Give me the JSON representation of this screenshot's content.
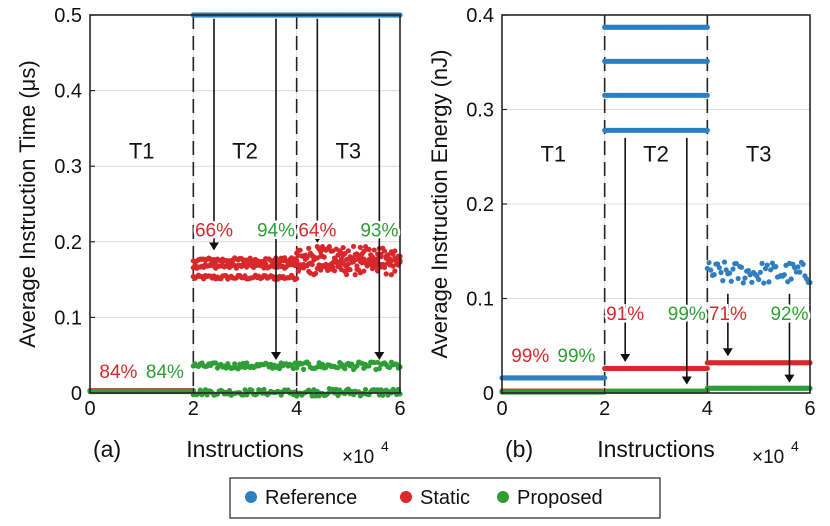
{
  "figure": {
    "colors": {
      "reference": "#2e7fc1",
      "static": "#d8282b",
      "proposed": "#2e9e35",
      "axis": "#262626",
      "grid": "#dcdcdc"
    },
    "x_multiplier": "×10",
    "x_multiplier_exp": "4",
    "legend": [
      {
        "name": "Reference",
        "color": "#2e7fc1"
      },
      {
        "name": "Static",
        "color": "#d8282b"
      },
      {
        "name": "Proposed",
        "color": "#2e9e35"
      }
    ]
  },
  "chart_data": [
    {
      "type": "scatter",
      "panel_label": "(a)",
      "xlabel": "Instructions",
      "ylabel": "Average Instruction Time (μs)",
      "xlim": [
        0,
        6
      ],
      "ylim": [
        0,
        0.5
      ],
      "xticks": [
        "0",
        "2",
        "4",
        "6"
      ],
      "yticks": [
        "0",
        "0.1",
        "0.2",
        "0.3",
        "0.4",
        "0.5"
      ],
      "grid": true,
      "phase_boundaries": [
        2,
        4
      ],
      "phases": [
        {
          "label": "T1",
          "x": 1,
          "y": 0.31
        },
        {
          "label": "T2",
          "x": 3,
          "y": 0.31
        },
        {
          "label": "T3",
          "x": 5,
          "y": 0.31
        }
      ],
      "series": [
        {
          "name": "Reference",
          "segments": [
            {
              "x": [
                0,
                2
              ],
              "levels": [
                0.003
              ]
            },
            {
              "x": [
                2,
                4
              ],
              "levels": [
                0.5
              ]
            },
            {
              "x": [
                4,
                6
              ],
              "levels": [
                0.5
              ]
            }
          ]
        },
        {
          "name": "Static",
          "segments": [
            {
              "x": [
                0,
                2
              ],
              "levels": [
                0.003
              ]
            },
            {
              "x": [
                2,
                4
              ],
              "levels": [
                0.153,
                0.168,
                0.176
              ],
              "jitter": 0.003
            },
            {
              "x": [
                4,
                6
              ],
              "levels": [
                0.165,
                0.175,
                0.185
              ],
              "jitter": 0.009
            }
          ]
        },
        {
          "name": "Proposed",
          "segments": [
            {
              "x": [
                0,
                2
              ],
              "levels": [
                0.002
              ]
            },
            {
              "x": [
                2,
                4
              ],
              "levels": [
                0.001,
                0.036
              ],
              "jitter": 0.004
            },
            {
              "x": [
                4,
                6
              ],
              "levels": [
                0.001,
                0.036
              ],
              "jitter": 0.005
            }
          ]
        }
      ],
      "annotations": [
        {
          "text": "84%",
          "series": "Static",
          "x": 0.55,
          "y": 0.02
        },
        {
          "text": "84%",
          "series": "Proposed",
          "x": 1.45,
          "y": 0.02
        },
        {
          "text": "66%",
          "series": "Static",
          "x": 2.4,
          "y": 0.207,
          "arrow": [
            2.4,
            0.495,
            2.4,
            0.19
          ]
        },
        {
          "text": "94%",
          "series": "Proposed",
          "x": 3.6,
          "y": 0.207,
          "arrow": [
            3.6,
            0.495,
            3.6,
            0.045
          ]
        },
        {
          "text": "64%",
          "series": "Static",
          "x": 4.4,
          "y": 0.207,
          "arrow": [
            4.4,
            0.495,
            4.4,
            0.2
          ]
        },
        {
          "text": "93%",
          "series": "Proposed",
          "x": 5.6,
          "y": 0.207,
          "arrow": [
            5.6,
            0.495,
            5.6,
            0.045
          ]
        }
      ]
    },
    {
      "type": "scatter",
      "panel_label": "(b)",
      "xlabel": "Instructions",
      "ylabel": "Average Instruction Energy (nJ)",
      "xlim": [
        0,
        6
      ],
      "ylim": [
        0,
        0.4
      ],
      "xticks": [
        "0",
        "2",
        "4",
        "6"
      ],
      "yticks": [
        "0",
        "0.1",
        "0.2",
        "0.3",
        "0.4"
      ],
      "grid": true,
      "phase_boundaries": [
        2,
        4
      ],
      "phases": [
        {
          "label": "T1",
          "x": 1,
          "y": 0.245
        },
        {
          "label": "T2",
          "x": 3,
          "y": 0.245
        },
        {
          "label": "T3",
          "x": 5,
          "y": 0.245
        }
      ],
      "series": [
        {
          "name": "Reference",
          "segments": [
            {
              "x": [
                0,
                2
              ],
              "levels": [
                0.016
              ]
            },
            {
              "x": [
                2,
                4
              ],
              "levels": [
                0.278,
                0.315,
                0.351,
                0.387
              ]
            },
            {
              "x": [
                4,
                6
              ],
              "levels": [
                0.127
              ],
              "jitter": 0.012
            }
          ]
        },
        {
          "name": "Static",
          "segments": [
            {
              "x": [
                0,
                2
              ],
              "levels": [
                0.002
              ]
            },
            {
              "x": [
                2,
                4
              ],
              "levels": [
                0.026
              ]
            },
            {
              "x": [
                4,
                6
              ],
              "levels": [
                0.032
              ]
            }
          ]
        },
        {
          "name": "Proposed",
          "segments": [
            {
              "x": [
                0,
                2
              ],
              "levels": [
                0.001
              ]
            },
            {
              "x": [
                2,
                4
              ],
              "levels": [
                0.002
              ]
            },
            {
              "x": [
                4,
                6
              ],
              "levels": [
                0.005
              ]
            }
          ]
        }
      ],
      "annotations": [
        {
          "text": "99%",
          "series": "Static",
          "x": 0.55,
          "y": 0.033
        },
        {
          "text": "99%",
          "series": "Proposed",
          "x": 1.45,
          "y": 0.033
        },
        {
          "text": "91%",
          "series": "Static",
          "x": 2.4,
          "y": 0.077,
          "arrow": [
            2.4,
            0.27,
            2.4,
            0.034
          ]
        },
        {
          "text": "99%",
          "series": "Proposed",
          "x": 3.6,
          "y": 0.077,
          "arrow": [
            3.6,
            0.27,
            3.6,
            0.01
          ]
        },
        {
          "text": "71%",
          "series": "Static",
          "x": 4.4,
          "y": 0.077,
          "arrow": [
            4.4,
            0.105,
            4.4,
            0.04
          ]
        },
        {
          "text": "92%",
          "series": "Proposed",
          "x": 5.6,
          "y": 0.077,
          "arrow": [
            5.6,
            0.105,
            5.6,
            0.012
          ]
        }
      ]
    }
  ]
}
